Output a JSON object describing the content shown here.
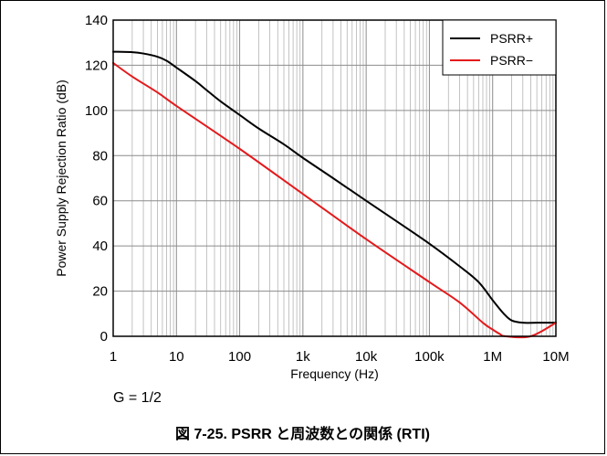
{
  "chart_data": {
    "type": "line",
    "xscale": "log",
    "xlim": [
      1,
      10000000
    ],
    "ylim": [
      0,
      140
    ],
    "xlabel": "Frequency (Hz)",
    "ylabel": "Power Supply Rejection Ratio (dB)",
    "x_ticks": [
      1,
      10,
      100,
      1000,
      10000,
      100000,
      1000000,
      10000000
    ],
    "x_tick_labels": [
      "1",
      "10",
      "100",
      "1k",
      "10k",
      "100k",
      "1M",
      "10M"
    ],
    "y_ticks": [
      0,
      20,
      40,
      60,
      80,
      100,
      120,
      140
    ],
    "y_tick_labels": [
      "0",
      "20",
      "40",
      "60",
      "80",
      "100",
      "120",
      "140"
    ],
    "grid": true,
    "legend_position": "top-right",
    "series": [
      {
        "name": "PSRR+",
        "color": "#000000",
        "x": [
          1,
          2,
          3,
          5,
          7,
          10,
          20,
          30,
          50,
          100,
          200,
          500,
          1000,
          3000,
          10000,
          30000,
          100000,
          300000,
          600000,
          1000000,
          1500000,
          2000000,
          3000000,
          5000000,
          7000000,
          10000000
        ],
        "y": [
          126,
          125.8,
          125.2,
          123.8,
          122,
          119,
          113,
          109,
          104,
          98,
          92,
          85,
          79,
          70,
          60,
          51,
          41,
          31,
          24,
          16,
          10,
          7,
          6,
          6,
          6,
          6
        ]
      },
      {
        "name": "PSRR−",
        "color": "#e31a1c",
        "x": [
          1,
          2,
          5,
          10,
          100,
          1000,
          10000,
          100000,
          300000,
          700000,
          1000000,
          1300000,
          1600000,
          4000000,
          10000000
        ],
        "y": [
          121,
          115,
          108,
          102,
          83,
          63,
          43,
          24,
          15,
          6,
          3,
          1,
          0,
          0,
          6
        ]
      }
    ]
  },
  "note": "G = 1/2",
  "caption": "図 7-25. PSRR と周波数との関係 (RTI)"
}
